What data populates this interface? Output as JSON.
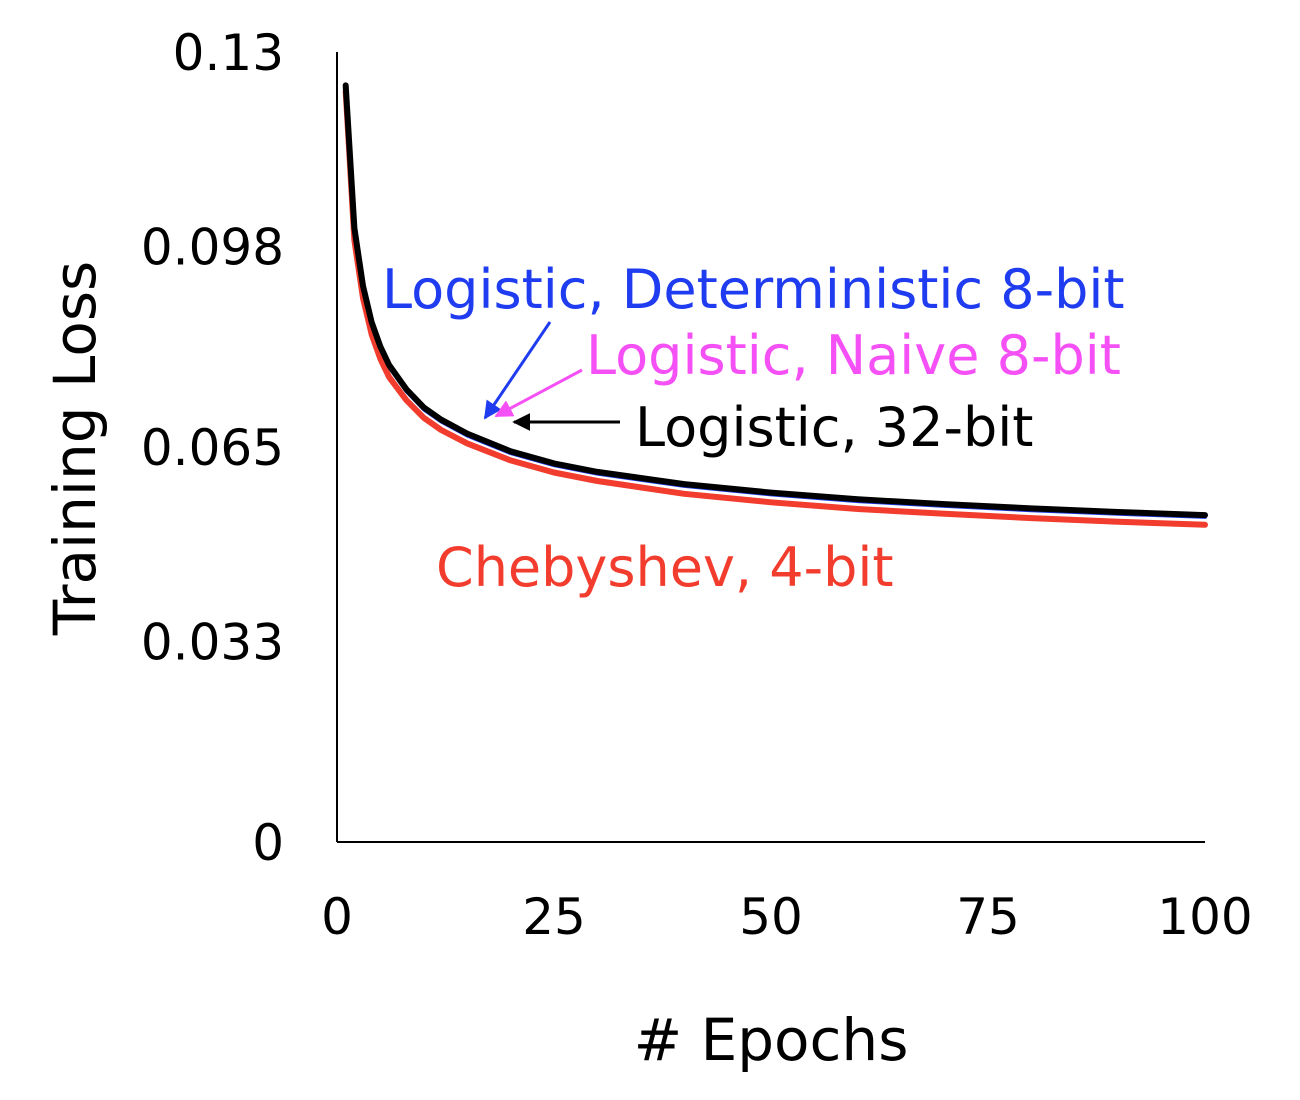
{
  "chart_data": {
    "type": "line",
    "title": "",
    "xlabel": "# Epochs",
    "ylabel": "Training Loss",
    "xlim": [
      0,
      100
    ],
    "ylim": [
      0,
      0.13
    ],
    "x_ticks": [
      0,
      25,
      50,
      75,
      100
    ],
    "x_tick_labels": [
      "0",
      "25",
      "50",
      "75",
      "100"
    ],
    "y_ticks": [
      0,
      0.033,
      0.065,
      0.098,
      0.13
    ],
    "y_tick_labels": [
      "0",
      "0.033",
      "0.065",
      "0.098",
      "0.13"
    ],
    "grid": false,
    "legend": "none",
    "x": [
      1,
      2,
      3,
      4,
      5,
      6,
      8,
      10,
      12,
      15,
      20,
      25,
      30,
      40,
      50,
      60,
      70,
      80,
      90,
      100
    ],
    "series": [
      {
        "name": "Logistic, 32-bit",
        "color": "#000000",
        "values": [
          0.1245,
          0.101,
          0.0915,
          0.0855,
          0.0815,
          0.0785,
          0.0745,
          0.0715,
          0.0695,
          0.0672,
          0.0643,
          0.0623,
          0.0609,
          0.0589,
          0.0575,
          0.0564,
          0.0556,
          0.0549,
          0.0543,
          0.0538
        ]
      },
      {
        "name": "Logistic, Deterministic 8-bit",
        "color": "#1f3cf0",
        "values": [
          0.1242,
          0.1007,
          0.0912,
          0.0852,
          0.0812,
          0.0782,
          0.0742,
          0.0712,
          0.0692,
          0.0669,
          0.064,
          0.062,
          0.0606,
          0.0586,
          0.0572,
          0.0561,
          0.0553,
          0.0546,
          0.054,
          0.0535
        ]
      },
      {
        "name": "Logistic, Naive 8-bit",
        "color": "#f550f5",
        "values": [
          0.1243,
          0.1008,
          0.0913,
          0.0853,
          0.0813,
          0.0783,
          0.0743,
          0.0713,
          0.0693,
          0.067,
          0.0641,
          0.0621,
          0.0607,
          0.0587,
          0.0573,
          0.0562,
          0.0554,
          0.0547,
          0.0541,
          0.0536
        ]
      },
      {
        "name": "Chebyshev, 4-bit",
        "color": "#f23c2d",
        "values": [
          0.1235,
          0.099,
          0.0895,
          0.0835,
          0.0795,
          0.0765,
          0.0727,
          0.0698,
          0.0678,
          0.0656,
          0.0628,
          0.0608,
          0.0594,
          0.0573,
          0.0559,
          0.0548,
          0.054,
          0.0533,
          0.0527,
          0.0522
        ]
      }
    ],
    "annotations": [
      {
        "text": "Logistic, Deterministic 8-bit",
        "color": "#1f3cf0",
        "points_to_x": 16.5
      },
      {
        "text": "Logistic, Naive 8-bit",
        "color": "#f550f5",
        "points_to_x": 18
      },
      {
        "text": "Logistic, 32-bit",
        "color": "#000000",
        "points_to_x": 20
      },
      {
        "text": "Chebyshev, 4-bit",
        "color": "#f23c2d"
      }
    ]
  }
}
